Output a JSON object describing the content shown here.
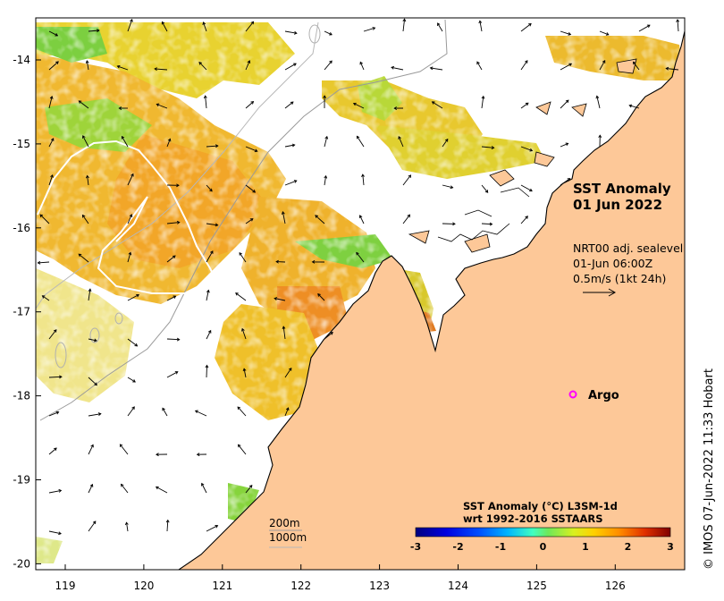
{
  "title": {
    "line1": "SST Anomaly",
    "line2": "01 Jun 2022"
  },
  "current_info": {
    "line1": "NRT00 adj. sealevel",
    "line2": "01-Jun 06:00Z",
    "line3": "0.5m/s (1kt 24h)"
  },
  "argo_label": "Argo",
  "isobath_labels": {
    "shallow": "200m",
    "deep": "1000m"
  },
  "colorbar": {
    "title_line1": "SST Anomaly (°C) L3SM-1d",
    "title_line2": "wrt 1992-2016 SSTAARS",
    "ticks": [
      "-3",
      "-2",
      "-1",
      "0",
      "1",
      "2",
      "3"
    ],
    "colors": [
      "#00007f",
      "#0000d0",
      "#0033ff",
      "#008cff",
      "#00d5ff",
      "#2effc8",
      "#7bff7b",
      "#c8ff2e",
      "#ffd800",
      "#ff8c00",
      "#ff3b00",
      "#d00000",
      "#7f0000"
    ]
  },
  "credit": "© IMOS 07-Jun-2022 11:33 Hobart",
  "axes": {
    "lat_ticks": [
      "-14",
      "-15",
      "-16",
      "-17",
      "-18",
      "-19",
      "-20"
    ],
    "lon_ticks": [
      "119",
      "120",
      "121",
      "122",
      "123",
      "124",
      "125",
      "126"
    ]
  },
  "colors": {
    "land": "#fdc898",
    "argo": "#ff00ff",
    "sst_warm": "#f0b428",
    "sst_neutral": "#d4d428",
    "sst_cool": "#55c830"
  }
}
